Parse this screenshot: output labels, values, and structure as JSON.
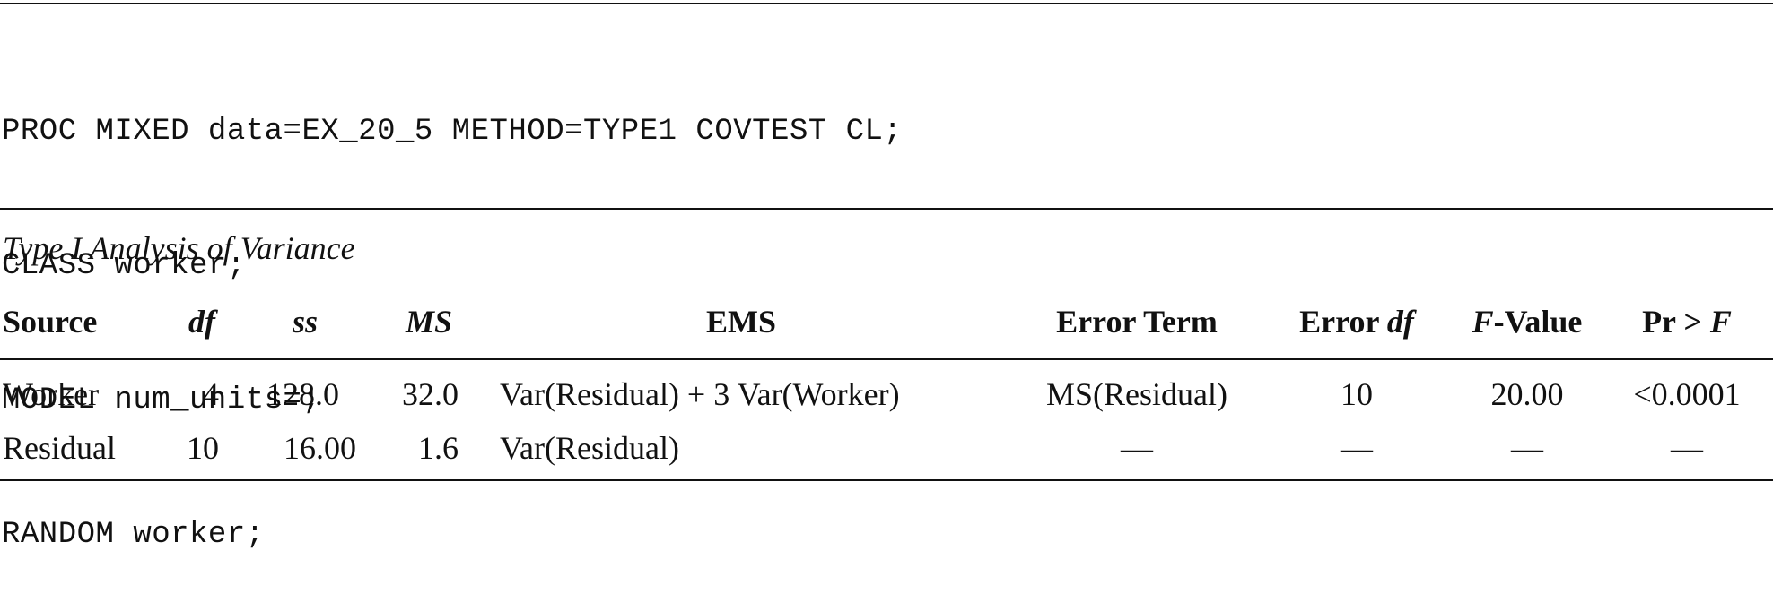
{
  "code": {
    "lines": [
      "PROC MIXED data=EX_20_5 METHOD=TYPE1 COVTEST CL;",
      "CLASS worker;",
      "MODEL num_units=;",
      "RANDOM worker;"
    ]
  },
  "table": {
    "caption": "Type I Analysis of Variance",
    "headers": {
      "source": "Source",
      "df": "df",
      "ss": "ss",
      "ms": "MS",
      "ems": "EMS",
      "error_term": "Error Term",
      "error_df_prefix": "Error ",
      "error_df_italic": "df",
      "fvalue_italic": "F",
      "fvalue_suffix": "-Value",
      "pr_prefix": "Pr > ",
      "pr_italic": "F"
    },
    "rows": [
      {
        "source": "Worker",
        "df": "4",
        "ss": "128.0",
        "ms": "32.0",
        "ems": "Var(Residual) + 3 Var(Worker)",
        "error_term": "MS(Residual)",
        "error_df": "10",
        "fvalue": "20.00",
        "pr": "<0.0001"
      },
      {
        "source": "Residual",
        "df": "10",
        "ss": "16.00",
        "ms": "1.6",
        "ems": "Var(Residual)",
        "error_term": "—",
        "error_df": "—",
        "fvalue": "—",
        "pr": "—"
      }
    ]
  }
}
